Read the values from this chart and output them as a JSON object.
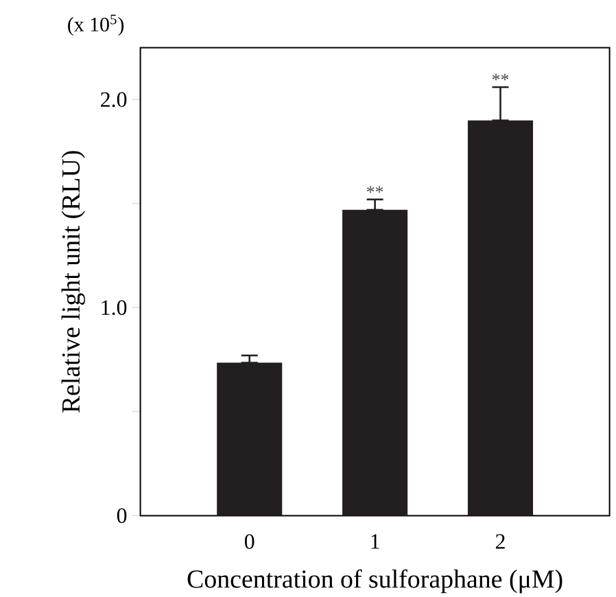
{
  "chart_data": {
    "type": "bar",
    "categories": [
      "0",
      "1",
      "2"
    ],
    "values": [
      0.735,
      1.47,
      1.9
    ],
    "errors": [
      [
        0.735,
        0.77
      ],
      [
        1.47,
        1.52
      ],
      [
        1.9,
        2.06
      ]
    ],
    "color": "#231f20",
    "xlabel": "Concentration of sulforaphane (μM)",
    "ylabel": "Relative light unit (RLU)",
    "ylim": [
      0,
      2.25
    ],
    "yticks": [
      0,
      {
        "value": 0.5,
        "label": null
      },
      {
        "value": 1.0,
        "label": "1.0"
      },
      {
        "value": 1.5,
        "label": null
      },
      {
        "value": 2.0,
        "label": "2.0"
      }
    ],
    "annotations": [
      "(x 10$^{5}$)",
      {
        "text": "**",
        "x": "1",
        "y": 1.52
      },
      {
        "text": "**",
        "x": "2",
        "y": 2.06
      }
    ]
  }
}
